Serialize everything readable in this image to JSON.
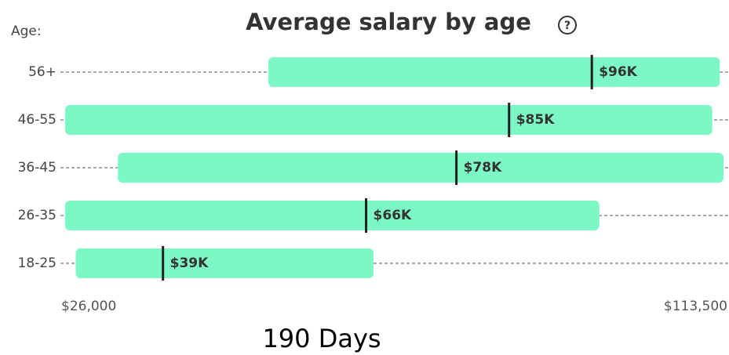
{
  "chart_data": {
    "type": "range-bar",
    "title": "Average salary by age",
    "axis_label": "Age:",
    "footer": "190 Days",
    "categories": [
      "56+",
      "46-55",
      "36-45",
      "26-35",
      "18-25"
    ],
    "low": [
      53000,
      26000,
      33000,
      26000,
      27400
    ],
    "high": [
      113000,
      112000,
      113500,
      97000,
      67000
    ],
    "values": [
      96000,
      85000,
      78000,
      66000,
      39000
    ],
    "value_labels": [
      "$96K",
      "$85K",
      "$78K",
      "$66K",
      "$39K"
    ],
    "color": "#7cf7c5",
    "xlim": [
      26000,
      113500
    ],
    "xticks": [
      {
        "value": 26000,
        "label": "$26,000"
      },
      {
        "value": 113500,
        "label": "$113,500"
      }
    ]
  }
}
